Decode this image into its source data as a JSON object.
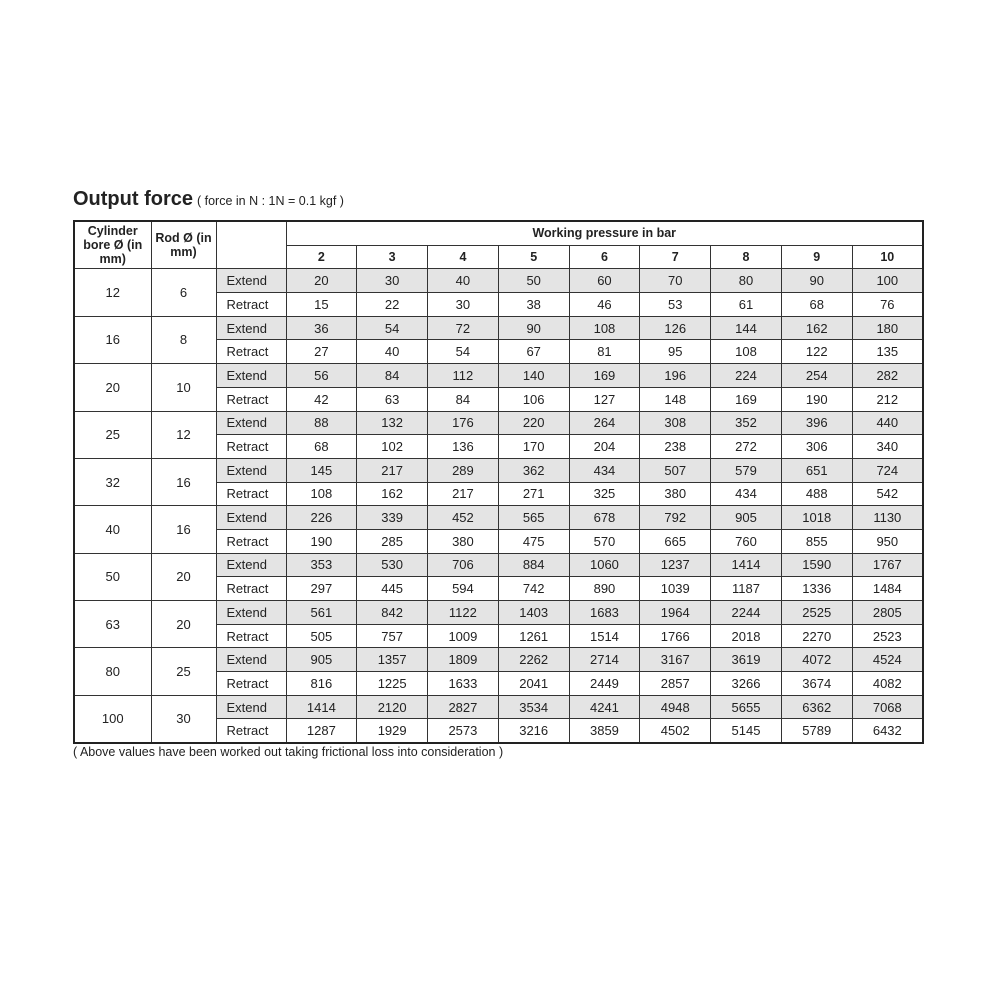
{
  "title": "Output force",
  "subtitle": "( force in N : 1N = 0.1 kgf )",
  "headers": {
    "bore": "Cylinder bore Ø (in mm)",
    "rod": "Rod Ø (in mm)",
    "pressure": "Working pressure in bar",
    "pressures": [
      "2",
      "3",
      "4",
      "5",
      "6",
      "7",
      "8",
      "9",
      "10"
    ]
  },
  "shade_color": "#e4e4e4",
  "rows": [
    {
      "bore": "12",
      "rod": "6",
      "extend": [
        "20",
        "30",
        "40",
        "50",
        "60",
        "70",
        "80",
        "90",
        "100"
      ],
      "retract": [
        "15",
        "22",
        "30",
        "38",
        "46",
        "53",
        "61",
        "68",
        "76"
      ]
    },
    {
      "bore": "16",
      "rod": "8",
      "extend": [
        "36",
        "54",
        "72",
        "90",
        "108",
        "126",
        "144",
        "162",
        "180"
      ],
      "retract": [
        "27",
        "40",
        "54",
        "67",
        "81",
        "95",
        "108",
        "122",
        "135"
      ]
    },
    {
      "bore": "20",
      "rod": "10",
      "extend": [
        "56",
        "84",
        "112",
        "140",
        "169",
        "196",
        "224",
        "254",
        "282"
      ],
      "retract": [
        "42",
        "63",
        "84",
        "106",
        "127",
        "148",
        "169",
        "190",
        "212"
      ]
    },
    {
      "bore": "25",
      "rod": "12",
      "extend": [
        "88",
        "132",
        "176",
        "220",
        "264",
        "308",
        "352",
        "396",
        "440"
      ],
      "retract": [
        "68",
        "102",
        "136",
        "170",
        "204",
        "238",
        "272",
        "306",
        "340"
      ]
    },
    {
      "bore": "32",
      "rod": "16",
      "extend": [
        "145",
        "217",
        "289",
        "362",
        "434",
        "507",
        "579",
        "651",
        "724"
      ],
      "retract": [
        "108",
        "162",
        "217",
        "271",
        "325",
        "380",
        "434",
        "488",
        "542"
      ]
    },
    {
      "bore": "40",
      "rod": "16",
      "extend": [
        "226",
        "339",
        "452",
        "565",
        "678",
        "792",
        "905",
        "1018",
        "1130"
      ],
      "retract": [
        "190",
        "285",
        "380",
        "475",
        "570",
        "665",
        "760",
        "855",
        "950"
      ]
    },
    {
      "bore": "50",
      "rod": "20",
      "extend": [
        "353",
        "530",
        "706",
        "884",
        "1060",
        "1237",
        "1414",
        "1590",
        "1767"
      ],
      "retract": [
        "297",
        "445",
        "594",
        "742",
        "890",
        "1039",
        "1187",
        "1336",
        "1484"
      ]
    },
    {
      "bore": "63",
      "rod": "20",
      "extend": [
        "561",
        "842",
        "1122",
        "1403",
        "1683",
        "1964",
        "2244",
        "2525",
        "2805"
      ],
      "retract": [
        "505",
        "757",
        "1009",
        "1261",
        "1514",
        "1766",
        "2018",
        "2270",
        "2523"
      ]
    },
    {
      "bore": "80",
      "rod": "25",
      "extend": [
        "905",
        "1357",
        "1809",
        "2262",
        "2714",
        "3167",
        "3619",
        "4072",
        "4524"
      ],
      "retract": [
        "816",
        "1225",
        "1633",
        "2041",
        "2449",
        "2857",
        "3266",
        "3674",
        "4082"
      ]
    },
    {
      "bore": "100",
      "rod": "30",
      "extend": [
        "1414",
        "2120",
        "2827",
        "3534",
        "4241",
        "4948",
        "5655",
        "6362",
        "7068"
      ],
      "retract": [
        "1287",
        "1929",
        "2573",
        "3216",
        "3859",
        "4502",
        "5145",
        "5789",
        "6432"
      ]
    }
  ],
  "labels": {
    "extend": "Extend",
    "retract": "Retract"
  },
  "note": "( Above values have been worked out taking frictional loss into consideration )"
}
